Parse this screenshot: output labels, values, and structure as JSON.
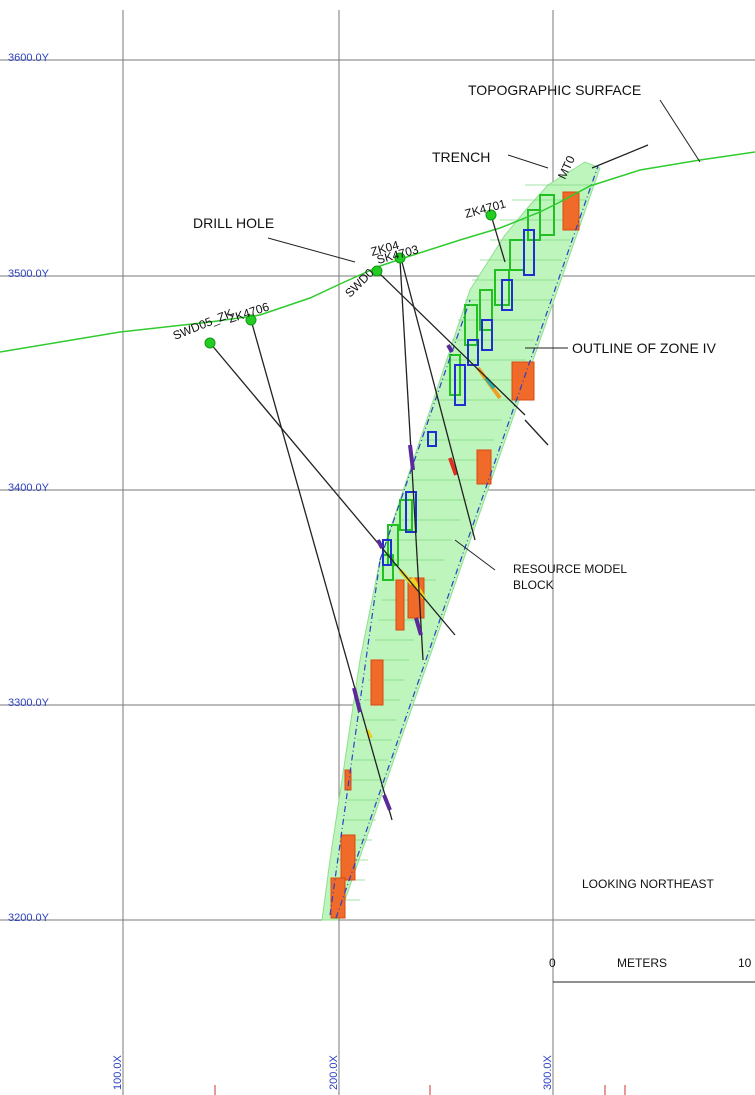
{
  "grid": {
    "y_labels": [
      "3600.0Y",
      "3500.0Y",
      "3400.0Y",
      "3300.0Y",
      "3200.0Y"
    ],
    "x_labels": [
      "100.0X",
      "200.0X",
      "300.0X"
    ]
  },
  "annotations": {
    "topographic_surface": "TOPOGRAPHIC SURFACE",
    "trench": "TRENCH",
    "drill_hole": "DRILL HOLE",
    "outline_zone": "OUTLINE OF ZONE IV",
    "resource_model_line1": "RESOURCE MODEL",
    "resource_model_line2": "BLOCK",
    "looking": "LOOKING NORTHEAST"
  },
  "drill_holes": {
    "swd05": "SWD05_ZK",
    "zk4706": "ZK4706",
    "swd_mid": "SWD0",
    "zk_mid_a": "ZK04",
    "zk_mid_b": "SK4703",
    "zk4701": "ZK4701",
    "trench_hole": "MT0"
  },
  "scale_bar": {
    "start": "0",
    "unit": "METERS",
    "end": "10"
  },
  "colors": {
    "grid": "#7a7a7a",
    "topography": "#2ecc2e",
    "block_light": "#a6f0a6",
    "block_green": "#22c022",
    "block_blue": "#1f2fd0",
    "block_orange": "#f06a2a",
    "drill_trace": "#222222",
    "collar": "#22cc22",
    "axis_label": "#2a3fbf",
    "sample": "#5a2a9a"
  }
}
